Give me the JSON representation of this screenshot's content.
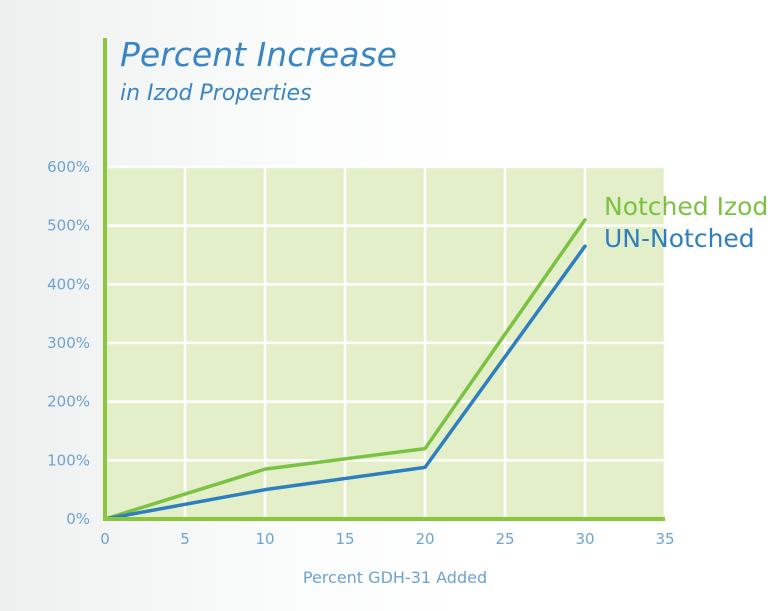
{
  "chart_data": {
    "type": "line",
    "title": "Percent Increase",
    "subtitle": "in Izod Properties",
    "xlabel": "Percent GDH-31 Added",
    "ylabel": "",
    "xlim": [
      0,
      35
    ],
    "ylim": [
      0,
      600
    ],
    "x_ticks": [
      "0",
      "5",
      "10",
      "15",
      "20",
      "25",
      "30",
      "35"
    ],
    "y_ticks": [
      "0%",
      "100%",
      "200%",
      "300%",
      "400%",
      "500%",
      "600%"
    ],
    "grid": true,
    "legend_position": "right, at line ends",
    "series": [
      {
        "name": "Notched Izod",
        "color": "#7cc242",
        "x": [
          0,
          10,
          20,
          30
        ],
        "y": [
          0,
          85,
          120,
          510
        ]
      },
      {
        "name": "UN-Notched",
        "color": "#2f7fbf",
        "x": [
          0,
          10,
          20,
          30
        ],
        "y": [
          0,
          50,
          88,
          465
        ]
      }
    ]
  },
  "colors": {
    "plot_fill": "#e2efc9",
    "grid": "#ffffff",
    "axis": "#8cc63f",
    "tick_text": "#6ea3cf"
  }
}
